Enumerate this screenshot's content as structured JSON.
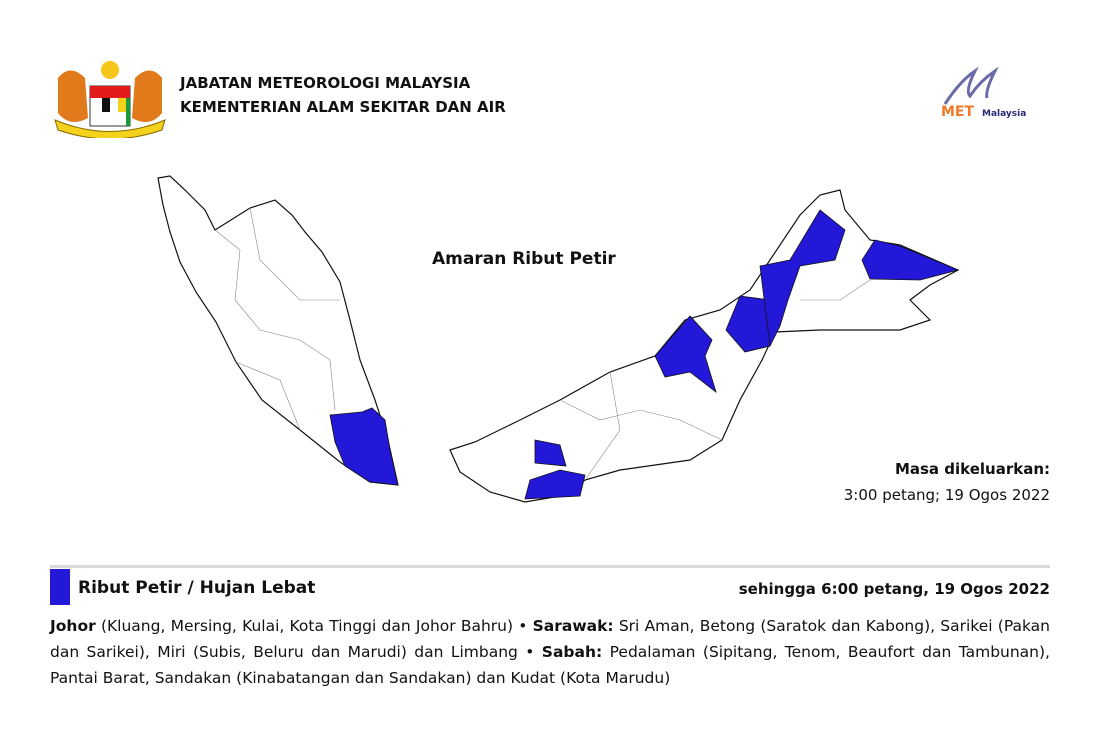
{
  "header": {
    "agency": "JABATAN METEOROLOGI MALAYSIA",
    "ministry": "KEMENTERIAN ALAM SEKITAR DAN AIR",
    "coat_of_arms_text": [
      "BERSEKUTU",
      "BERTAMBAH MUTU"
    ],
    "logo_text": "METMalaysia"
  },
  "map": {
    "title": "Amaran Ribut Petir",
    "warning_color": "#2418d8",
    "issued_label": "Masa dikeluarkan:",
    "issued_time": "3:00 petang; 19 Ogos 2022"
  },
  "warning": {
    "title": "Ribut Petir / Hujan Lebat",
    "valid_until": "sehingga 6:00 petang, 19 Ogos 2022",
    "sections": [
      {
        "state": "Johor",
        "areas": " (Kluang, Mersing, Kulai, Kota Tinggi dan Johor Bahru) • "
      },
      {
        "state": "Sarawak:",
        "areas": " Sri Aman, Betong (Saratok dan Kabong), Sarikei (Pakan dan Sarikei), Miri (Subis, Beluru dan Marudi) dan Limbang • "
      },
      {
        "state": "Sabah:",
        "areas": " Pedalaman (Sipitang, Tenom, Beaufort dan Tambunan), Pantai Barat, Sandakan (Kinabatangan dan Sandakan) dan Kudat (Kota Marudu)"
      }
    ]
  }
}
